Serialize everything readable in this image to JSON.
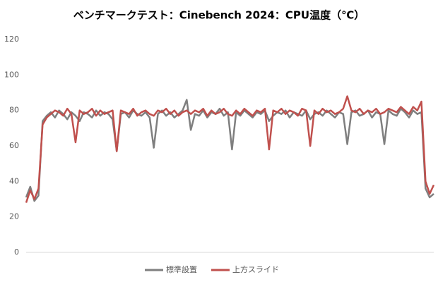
{
  "chart_data": {
    "type": "line",
    "title": "ベンチマークテスト：Cinebench 2024：CPU温度（℃）",
    "ylim": [
      0,
      120
    ],
    "yticks": [
      0,
      20,
      40,
      60,
      80,
      100,
      120
    ],
    "grid": false,
    "legend": "bottom",
    "series": [
      {
        "name": "標準設置",
        "color": "#7f7f7f",
        "values": [
          31,
          37,
          29,
          32,
          74,
          77,
          79,
          76,
          80,
          78,
          75,
          79,
          77,
          74,
          79,
          78,
          76,
          80,
          77,
          79,
          78,
          75,
          57,
          78,
          79,
          76,
          80,
          78,
          77,
          79,
          76,
          59,
          78,
          80,
          77,
          79,
          76,
          78,
          80,
          86,
          69,
          78,
          77,
          80,
          76,
          79,
          78,
          81,
          77,
          79,
          58,
          79,
          77,
          80,
          78,
          76,
          79,
          78,
          80,
          74,
          77,
          79,
          78,
          80,
          76,
          79,
          78,
          77,
          80,
          75,
          78,
          79,
          77,
          80,
          78,
          76,
          79,
          78,
          61,
          79,
          80,
          77,
          78,
          80,
          76,
          79,
          78,
          61,
          80,
          78,
          77,
          81,
          79,
          76,
          80,
          78,
          79,
          36,
          31,
          33
        ]
      },
      {
        "name": "上方スライド",
        "color": "#c0504d",
        "values": [
          28,
          35,
          30,
          36,
          72,
          76,
          78,
          80,
          79,
          77,
          81,
          78,
          62,
          80,
          78,
          79,
          81,
          77,
          80,
          78,
          79,
          80,
          57,
          80,
          79,
          78,
          81,
          77,
          79,
          80,
          78,
          77,
          80,
          79,
          81,
          78,
          80,
          77,
          79,
          80,
          78,
          80,
          79,
          81,
          77,
          80,
          78,
          79,
          81,
          78,
          77,
          80,
          78,
          81,
          79,
          77,
          80,
          79,
          81,
          58,
          80,
          79,
          81,
          78,
          80,
          79,
          77,
          81,
          80,
          60,
          80,
          78,
          81,
          79,
          80,
          78,
          79,
          81,
          88,
          80,
          79,
          81,
          78,
          80,
          79,
          81,
          78,
          79,
          81,
          80,
          79,
          82,
          80,
          78,
          82,
          80,
          85,
          40,
          33,
          38
        ]
      }
    ]
  }
}
